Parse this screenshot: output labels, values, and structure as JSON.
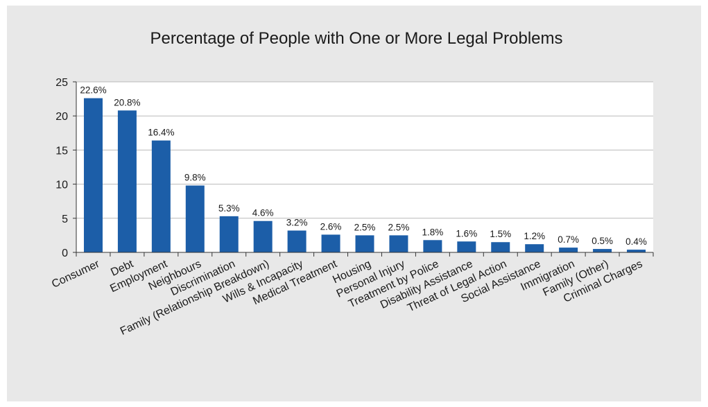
{
  "chart_data": {
    "type": "bar",
    "title": "Percentage of People with One or More Legal Problems",
    "xlabel": "",
    "ylabel": "",
    "ylim": [
      0,
      25
    ],
    "yticks": [
      "0",
      "5",
      "10",
      "15",
      "20",
      "25"
    ],
    "grid": true,
    "legend": "none",
    "colors": {
      "bar": "#1c5ea8",
      "panel": "#e8e8e8",
      "plot": "#ffffff",
      "grid": "#b9b9b9"
    },
    "categories": [
      "Consumer",
      "Debt",
      "Employment",
      "Neighbours",
      "Discrimination",
      "Family (Relationship Breakdown)",
      "Wills & Incapacity",
      "Medical Treatment",
      "Housing",
      "Personal Injury",
      "Treatment by Police",
      "Disability Assistance",
      "Threat of Legal Action",
      "Social Assistance",
      "Immigration",
      "Family (Other)",
      "Criminal Charges"
    ],
    "values": [
      22.6,
      20.8,
      16.4,
      9.8,
      5.3,
      4.6,
      3.2,
      2.6,
      2.5,
      2.5,
      1.8,
      1.6,
      1.5,
      1.2,
      0.7,
      0.5,
      0.4
    ],
    "data_labels": [
      "22.6%",
      "20.8%",
      "16.4%",
      "9.8%",
      "5.3%",
      "4.6%",
      "3.2%",
      "2.6%",
      "2.5%",
      "2.5%",
      "1.8%",
      "1.6%",
      "1.5%",
      "1.2%",
      "0.7%",
      "0.5%",
      "0.4%"
    ]
  }
}
